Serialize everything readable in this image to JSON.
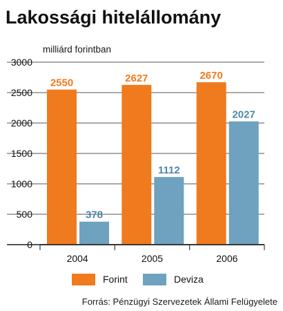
{
  "chart_data": {
    "type": "bar",
    "title": "Lakossági hitelállomány",
    "ylabel": "milliárd forintban",
    "categories": [
      "2004",
      "2005",
      "2006"
    ],
    "series": [
      {
        "name": "Forint",
        "values": [
          2550,
          2627,
          2670
        ],
        "color": "#f07a1e",
        "label_color": "#f07a1e"
      },
      {
        "name": "Deviza",
        "values": [
          378,
          1112,
          2027
        ],
        "color": "#6ea2be",
        "label_color": "#4f86a6"
      }
    ],
    "ylim": [
      0,
      3000
    ],
    "yticks": [
      0,
      500,
      1000,
      1500,
      2000,
      2500,
      3000
    ],
    "grid": true,
    "legend": "bottom",
    "source": "Forrás: Pénzügyi Szervezetek Állami Felügyelete"
  }
}
